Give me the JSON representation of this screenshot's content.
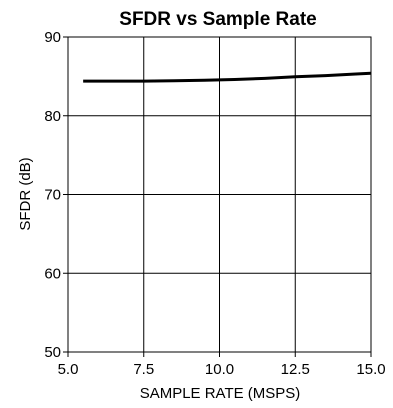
{
  "chart_data": {
    "type": "line",
    "title": "SFDR vs Sample Rate",
    "xlabel": "SAMPLE RATE (MSPS)",
    "ylabel": "SFDR (dB)",
    "xlim": [
      5.0,
      15.0
    ],
    "ylim": [
      50,
      90
    ],
    "x_ticks": [
      "5.0",
      "7.5",
      "10.0",
      "12.5",
      "15.0"
    ],
    "y_ticks": [
      "50",
      "60",
      "70",
      "80",
      "90"
    ],
    "grid": true,
    "series": [
      {
        "x": [
          5.5,
          6.5,
          7.5,
          8.5,
          9.5,
          10.5,
          11.5,
          12.5,
          13.5,
          14.5,
          15.0
        ],
        "y": [
          84.4,
          84.4,
          84.4,
          84.45,
          84.5,
          84.6,
          84.75,
          84.95,
          85.1,
          85.3,
          85.4
        ],
        "color": "#000000"
      }
    ]
  }
}
